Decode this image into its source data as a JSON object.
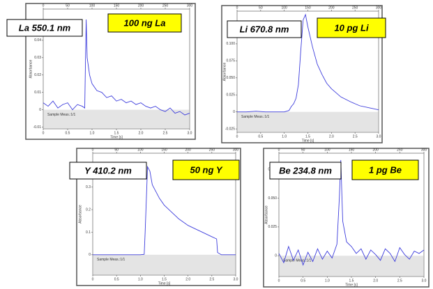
{
  "chart_data": [
    {
      "type": "line",
      "element_label": "La 550.1 nm",
      "sample_label": "100 ng La",
      "region_label": "Sample Meas.:1/1",
      "xlabel": "Time [s]",
      "ylabel": "Absorbance",
      "color": "#3c3cdc",
      "shade_below_zero": true,
      "x": [
        0,
        0.1,
        0.2,
        0.3,
        0.4,
        0.5,
        0.6,
        0.7,
        0.8,
        0.85,
        0.88,
        0.9,
        0.95,
        1.0,
        1.1,
        1.2,
        1.3,
        1.4,
        1.5,
        1.6,
        1.7,
        1.8,
        1.9,
        2.0,
        2.1,
        2.2,
        2.3,
        2.4,
        2.5,
        2.6,
        2.7,
        2.8,
        2.9,
        3.0
      ],
      "values": [
        0.004,
        0.002,
        0.005,
        0.001,
        0.003,
        0.004,
        0,
        0.003,
        0.002,
        0.001,
        0.052,
        0.03,
        0.02,
        0.015,
        0.011,
        0.01,
        0.007,
        0.008,
        0.005,
        0.006,
        0.004,
        0.005,
        0.003,
        0.004,
        0.002,
        0.001,
        0.002,
        0,
        -0.001,
        0.001,
        -0.002,
        -0.001,
        -0.003,
        -0.002
      ],
      "xlim": [
        0,
        3
      ],
      "xticks": [
        0,
        0.5,
        {
          "value": 1,
          "label": "1.0"
        },
        1.5,
        {
          "value": 2,
          "label": "2.0"
        },
        2.5,
        {
          "value": 3,
          "label": "3.0"
        }
      ],
      "x2lim": [
        0,
        300
      ],
      "x2ticks": [
        0,
        50,
        100,
        150,
        200,
        250,
        300
      ],
      "ylim": [
        -0.011,
        0.058
      ],
      "yticks": [
        -0.01,
        0,
        0.01,
        0.02,
        0.03,
        0.04
      ]
    },
    {
      "type": "line",
      "element_label": "Li 670.8 nm",
      "sample_label": "10 pg Li",
      "region_label": "Sample Meas.:1/1",
      "xlabel": "Time [s]",
      "ylabel": "Absorbance",
      "color": "#3c3cdc",
      "shade_below_zero": true,
      "x": [
        0,
        0.2,
        0.4,
        0.6,
        0.8,
        1.0,
        1.1,
        1.15,
        1.2,
        1.25,
        1.3,
        1.35,
        1.4,
        1.45,
        1.5,
        1.6,
        1.7,
        1.8,
        1.9,
        2.0,
        2.2,
        2.4,
        2.6,
        2.8,
        3.0
      ],
      "values": [
        0,
        0,
        0.001,
        0,
        0,
        0,
        0.002,
        0.008,
        0.012,
        0.02,
        0.04,
        0.09,
        0.135,
        0.143,
        0.125,
        0.095,
        0.07,
        0.055,
        0.042,
        0.034,
        0.022,
        0.015,
        0.009,
        0.006,
        0.003
      ],
      "xlim": [
        0,
        3
      ],
      "xticks": [
        0,
        0.5,
        {
          "value": 1,
          "label": "1.0"
        },
        1.5,
        {
          "value": 2,
          "label": "2.0"
        },
        2.5,
        {
          "value": 3,
          "label": "3.0"
        }
      ],
      "x2lim": [
        0,
        300
      ],
      "x2ticks": [
        0,
        50,
        100,
        150,
        200,
        250,
        300
      ],
      "ylim": [
        -0.03,
        0.148
      ],
      "yticks": [
        -0.025,
        0,
        0.025,
        {
          "value": 0.05,
          "label": "0.050"
        },
        {
          "value": 0.075,
          "label": "0.075"
        },
        {
          "value": 0.1,
          "label": "0.100"
        }
      ]
    },
    {
      "type": "line",
      "element_label": "Y 410.2 nm",
      "sample_label": "50 ng Y",
      "region_label": "Sample Meas.:1/1",
      "xlabel": "Time [s]",
      "ylabel": "Absorbance",
      "color": "#3c3cdc",
      "shade_below_zero": true,
      "x": [
        0,
        0.2,
        0.4,
        0.6,
        0.8,
        1.0,
        1.08,
        1.1,
        1.15,
        1.2,
        1.25,
        1.3,
        1.4,
        1.5,
        1.6,
        1.8,
        2.0,
        2.2,
        2.4,
        2.5,
        2.6,
        2.62,
        2.7,
        2.8,
        3.0
      ],
      "values": [
        0,
        0,
        0,
        0,
        0,
        0,
        0.002,
        0.1,
        0.39,
        0.37,
        0.31,
        0.29,
        0.25,
        0.22,
        0.2,
        0.16,
        0.13,
        0.11,
        0.09,
        0.08,
        0.07,
        0.01,
        0,
        0,
        0
      ],
      "xlim": [
        0,
        3
      ],
      "xticks": [
        0,
        0.5,
        {
          "value": 1,
          "label": "1.0"
        },
        1.5,
        {
          "value": 2,
          "label": "2.0"
        },
        2.5,
        {
          "value": 3,
          "label": "3.0"
        }
      ],
      "x2lim": [
        0,
        300
      ],
      "x2ticks": [
        0,
        50,
        100,
        150,
        200,
        250,
        300
      ],
      "ylim": [
        -0.09,
        0.45
      ],
      "yticks": [
        0,
        0.1,
        0.2,
        0.3
      ]
    },
    {
      "type": "line",
      "element_label": "Be 234.8 nm",
      "sample_label": "1 pg Be",
      "region_label": "Sample Meas.:1/1",
      "xlabel": "Time [s]",
      "ylabel": "Absorbance",
      "color": "#3c3cdc",
      "shade_below_zero": true,
      "x": [
        0,
        0.1,
        0.2,
        0.3,
        0.4,
        0.5,
        0.6,
        0.7,
        0.8,
        0.9,
        1.0,
        1.1,
        1.2,
        1.25,
        1.28,
        1.32,
        1.4,
        1.5,
        1.6,
        1.7,
        1.8,
        1.9,
        2.0,
        2.1,
        2.2,
        2.3,
        2.4,
        2.5,
        2.6,
        2.7,
        2.8,
        2.9,
        3.0
      ],
      "values": [
        0.002,
        -0.006,
        0.008,
        -0.004,
        0.005,
        -0.008,
        0.003,
        -0.005,
        0.006,
        -0.003,
        0.004,
        -0.002,
        0.01,
        0.05,
        0.083,
        0.03,
        0.012,
        0.008,
        0.002,
        0.006,
        -0.003,
        0.005,
        0.001,
        -0.004,
        0.006,
        0.002,
        -0.005,
        0.007,
        0.001,
        -0.003,
        0.004,
        0.002,
        0.005
      ],
      "xlim": [
        0,
        3
      ],
      "xticks": [
        0,
        0.5,
        {
          "value": 1,
          "label": "1.0"
        },
        1.5,
        {
          "value": 2,
          "label": "2.0"
        },
        2.5,
        {
          "value": 3,
          "label": "3.0"
        }
      ],
      "x2lim": [
        0,
        300
      ],
      "x2ticks": [
        0,
        50,
        100,
        150,
        200,
        250,
        300
      ],
      "ylim": [
        -0.018,
        0.089
      ],
      "yticks": [
        0,
        0.025,
        {
          "value": 0.05,
          "label": "0.050"
        },
        {
          "value": 0.075,
          "label": "0.075"
        }
      ]
    }
  ]
}
